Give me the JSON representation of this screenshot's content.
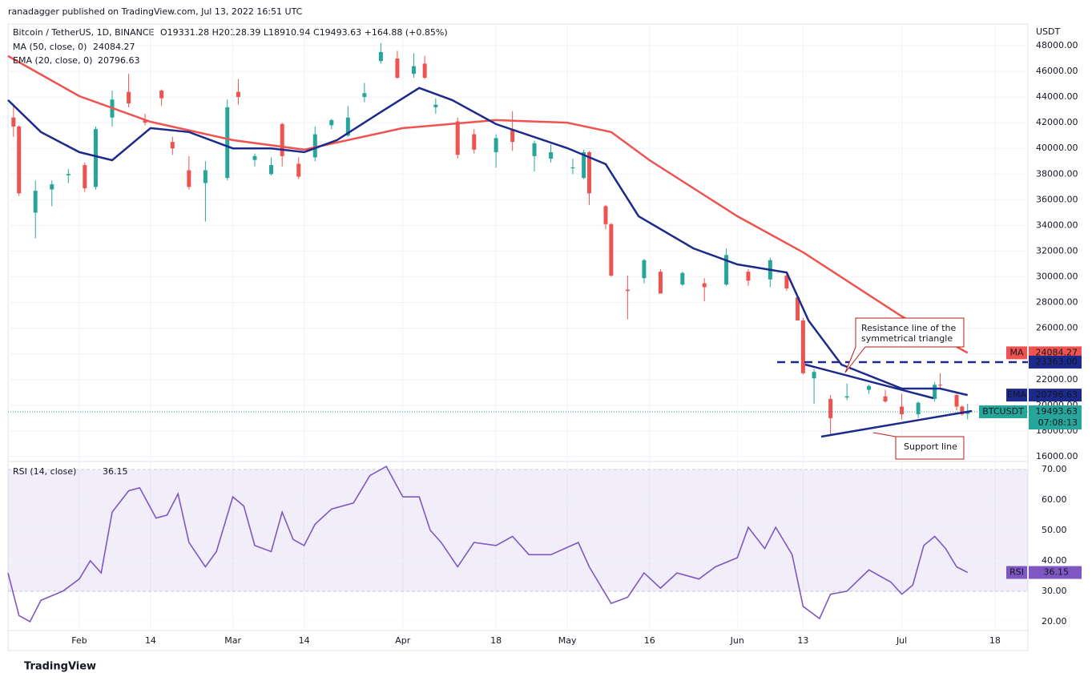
{
  "header": "ranadagger published on TradingView.com, Jul 13, 2022 16:51 UTC",
  "footer": "TradingView",
  "chart_data": [
    {
      "type": "candlestick",
      "legend": [
        "Bitcoin / TetherUS, 1D, BINANCE",
        "O19331.28 H20128.39 L18910.94 C19493.63 +164.88 (+0.85%)"
      ],
      "axis_unit": "USDT",
      "xlim": [
        "Jan 19",
        "Jul 24"
      ],
      "xticks": [
        {
          "value": "Feb 1",
          "label": "Feb"
        },
        {
          "value": "Feb 14",
          "label": "14"
        },
        {
          "value": "Mar 1",
          "label": "Mar"
        },
        {
          "value": "Mar 14",
          "label": "14"
        },
        {
          "value": "Apr 1",
          "label": "Apr"
        },
        {
          "value": "Apr 18",
          "label": "18"
        },
        {
          "value": "May 1",
          "label": "May"
        },
        {
          "value": "May 16",
          "label": "16"
        },
        {
          "value": "Jun 1",
          "label": "Jun"
        },
        {
          "value": "Jun 13",
          "label": "13"
        },
        {
          "value": "Jul 1",
          "label": "Jul"
        },
        {
          "value": "Jul 18",
          "label": "18"
        }
      ],
      "ylim": [
        15690,
        49680
      ],
      "yticks": [
        {
          "value": 16000,
          "label": "16000.00"
        },
        {
          "value": 18000,
          "label": "18000.00"
        },
        {
          "value": 20000,
          "label": "20000.00"
        },
        {
          "value": 22000,
          "label": "22000.00"
        },
        {
          "value": 24000,
          "label": "24000.00"
        },
        {
          "value": 26000,
          "label": "26000.00"
        },
        {
          "value": 28000,
          "label": "28000.00"
        },
        {
          "value": 30000,
          "label": "30000.00"
        },
        {
          "value": 32000,
          "label": "32000.00"
        },
        {
          "value": 34000,
          "label": "34000.00"
        },
        {
          "value": 36000,
          "label": "36000.00"
        },
        {
          "value": 38000,
          "label": "38000.00"
        },
        {
          "value": 40000,
          "label": "40000.00"
        },
        {
          "value": 42000,
          "label": "42000.00"
        },
        {
          "value": 44000,
          "label": "44000.00"
        },
        {
          "value": 46000,
          "label": "46000.00"
        },
        {
          "value": 48000,
          "label": "48000.00"
        }
      ],
      "grid": true,
      "up_color": "#26a69a",
      "down_color": "#ef5350",
      "candles": [
        {
          "x": "Jan 20",
          "open": 42400,
          "high": 43400,
          "low": 40900,
          "close": 41700
        },
        {
          "x": "Jan 21",
          "open": 41700,
          "high": 41800,
          "low": 36300,
          "close": 36500
        },
        {
          "x": "Jan 24",
          "open": 35000,
          "high": 37500,
          "low": 33000,
          "close": 36700
        },
        {
          "x": "Jan 27",
          "open": 36800,
          "high": 37500,
          "low": 35500,
          "close": 37200
        },
        {
          "x": "Jan 30",
          "open": 37900,
          "high": 38400,
          "low": 37300,
          "close": 38000
        },
        {
          "x": "Feb 2",
          "open": 38700,
          "high": 38900,
          "low": 36600,
          "close": 36900
        },
        {
          "x": "Feb 4",
          "open": 37000,
          "high": 41700,
          "low": 36800,
          "close": 41500
        },
        {
          "x": "Feb 7",
          "open": 42400,
          "high": 44500,
          "low": 41700,
          "close": 43800
        },
        {
          "x": "Feb 10",
          "open": 44400,
          "high": 45800,
          "low": 43200,
          "close": 43500
        },
        {
          "x": "Feb 13",
          "open": 42200,
          "high": 42700,
          "low": 41800,
          "close": 42000
        },
        {
          "x": "Feb 16",
          "open": 44500,
          "high": 44600,
          "low": 43300,
          "close": 43900
        },
        {
          "x": "Feb 18",
          "open": 40500,
          "high": 40900,
          "low": 39500,
          "close": 40000
        },
        {
          "x": "Feb 21",
          "open": 38300,
          "high": 39400,
          "low": 36800,
          "close": 37000
        },
        {
          "x": "Feb 24",
          "open": 37300,
          "high": 39000,
          "low": 34300,
          "close": 38300
        },
        {
          "x": "Feb 28",
          "open": 37700,
          "high": 43800,
          "low": 37500,
          "close": 43200
        },
        {
          "x": "Mar 2",
          "open": 44400,
          "high": 45400,
          "low": 43400,
          "close": 44000
        },
        {
          "x": "Mar 5",
          "open": 39100,
          "high": 39600,
          "low": 38600,
          "close": 39400
        },
        {
          "x": "Mar 8",
          "open": 38000,
          "high": 39300,
          "low": 37900,
          "close": 38700
        },
        {
          "x": "Mar 10",
          "open": 41900,
          "high": 42000,
          "low": 38600,
          "close": 39400
        },
        {
          "x": "Mar 13",
          "open": 38800,
          "high": 39300,
          "low": 37600,
          "close": 37800
        },
        {
          "x": "Mar 16",
          "open": 39300,
          "high": 41700,
          "low": 39000,
          "close": 41100
        },
        {
          "x": "Mar 19",
          "open": 41800,
          "high": 42300,
          "low": 41500,
          "close": 42200
        },
        {
          "x": "Mar 22",
          "open": 41000,
          "high": 43300,
          "low": 40900,
          "close": 42400
        },
        {
          "x": "Mar 25",
          "open": 44000,
          "high": 45100,
          "low": 43600,
          "close": 44300
        },
        {
          "x": "Mar 28",
          "open": 46800,
          "high": 48200,
          "low": 46600,
          "close": 47500
        },
        {
          "x": "Mar 31",
          "open": 47000,
          "high": 47600,
          "low": 45400,
          "close": 45500
        },
        {
          "x": "Apr 3",
          "open": 45800,
          "high": 47400,
          "low": 45500,
          "close": 46400
        },
        {
          "x": "Apr 5",
          "open": 46600,
          "high": 47200,
          "low": 45400,
          "close": 45500
        },
        {
          "x": "Apr 7",
          "open": 43200,
          "high": 43900,
          "low": 42700,
          "close": 43400
        },
        {
          "x": "Apr 11",
          "open": 42100,
          "high": 42400,
          "low": 39200,
          "close": 39500
        },
        {
          "x": "Apr 14",
          "open": 41100,
          "high": 41500,
          "low": 39600,
          "close": 39900
        },
        {
          "x": "Apr 18",
          "open": 39700,
          "high": 41100,
          "low": 38500,
          "close": 40800
        },
        {
          "x": "Apr 21",
          "open": 41500,
          "high": 42900,
          "low": 39800,
          "close": 40500
        },
        {
          "x": "Apr 25",
          "open": 39400,
          "high": 40600,
          "low": 38200,
          "close": 40400
        },
        {
          "x": "Apr 28",
          "open": 39200,
          "high": 40300,
          "low": 38900,
          "close": 39700
        },
        {
          "x": "May 2",
          "open": 38450,
          "high": 39200,
          "low": 38000,
          "close": 38520
        },
        {
          "x": "May 4",
          "open": 37700,
          "high": 39900,
          "low": 37600,
          "close": 39700
        },
        {
          "x": "May 5",
          "open": 39700,
          "high": 39800,
          "low": 35600,
          "close": 36500
        },
        {
          "x": "May 8",
          "open": 35500,
          "high": 35600,
          "low": 33700,
          "close": 34100
        },
        {
          "x": "May 9",
          "open": 34100,
          "high": 34200,
          "low": 30000,
          "close": 30100
        },
        {
          "x": "May 12",
          "open": 29000,
          "high": 30100,
          "low": 26700,
          "close": 28900
        },
        {
          "x": "May 15",
          "open": 29900,
          "high": 31400,
          "low": 29500,
          "close": 31300
        },
        {
          "x": "May 18",
          "open": 30400,
          "high": 30600,
          "low": 28700,
          "close": 28700
        },
        {
          "x": "May 22",
          "open": 29400,
          "high": 30400,
          "low": 29300,
          "close": 30300
        },
        {
          "x": "May 26",
          "open": 29500,
          "high": 29900,
          "low": 28100,
          "close": 29200
        },
        {
          "x": "May 30",
          "open": 29400,
          "high": 32200,
          "low": 29300,
          "close": 31700
        },
        {
          "x": "Jun 3",
          "open": 30400,
          "high": 30600,
          "low": 29300,
          "close": 29700
        },
        {
          "x": "Jun 7",
          "open": 29800,
          "high": 31500,
          "low": 29200,
          "close": 31300
        },
        {
          "x": "Jun 10",
          "open": 30100,
          "high": 30300,
          "low": 28900,
          "close": 29100
        },
        {
          "x": "Jun 12",
          "open": 28400,
          "high": 28500,
          "low": 26600,
          "close": 26600
        },
        {
          "x": "Jun 13",
          "open": 26600,
          "high": 26800,
          "low": 22400,
          "close": 22500
        },
        {
          "x": "Jun 15",
          "open": 22100,
          "high": 22800,
          "low": 20100,
          "close": 22600
        },
        {
          "x": "Jun 18",
          "open": 20500,
          "high": 20800,
          "low": 17600,
          "close": 19000
        },
        {
          "x": "Jun 21",
          "open": 20600,
          "high": 21700,
          "low": 20400,
          "close": 20700
        },
        {
          "x": "Jun 25",
          "open": 21200,
          "high": 21600,
          "low": 20900,
          "close": 21500
        },
        {
          "x": "Jun 28",
          "open": 20700,
          "high": 21200,
          "low": 20200,
          "close": 20300
        },
        {
          "x": "Jul 1",
          "open": 19900,
          "high": 20900,
          "low": 18900,
          "close": 19300
        },
        {
          "x": "Jul 4",
          "open": 19300,
          "high": 20300,
          "low": 19000,
          "close": 20200
        },
        {
          "x": "Jul 7",
          "open": 20500,
          "high": 21800,
          "low": 20300,
          "close": 21600
        },
        {
          "x": "Jul 8",
          "open": 21600,
          "high": 22500,
          "low": 21300,
          "close": 21590
        },
        {
          "x": "Jul 11",
          "open": 20800,
          "high": 20900,
          "low": 19600,
          "close": 19900
        },
        {
          "x": "Jul 12",
          "open": 19900,
          "high": 20000,
          "low": 19200,
          "close": 19300
        },
        {
          "x": "Jul 13",
          "open": 19331.28,
          "high": 20128.39,
          "low": 18910.94,
          "close": 19493.63
        }
      ],
      "series": [
        {
          "name": "MA (50, close, 0)",
          "value_label": "24084.27",
          "tag": "MA",
          "tag_value": 24084.27,
          "color": "#ef5350",
          "x": [
            "Jan 19",
            "Feb 1",
            "Feb 14",
            "Mar 1",
            "Mar 14",
            "Apr 1",
            "Apr 18",
            "May 1",
            "May 9",
            "May 16",
            "Jun 1",
            "Jun 13",
            "Jul 1",
            "Jul 13"
          ],
          "values": [
            47190,
            44070,
            42070,
            40640,
            39900,
            41580,
            42200,
            42000,
            41270,
            39080,
            34720,
            31910,
            26920,
            24084.27
          ]
        },
        {
          "name": "EMA (20, close, 0)",
          "value_label": "20796.63",
          "tag": "EMA",
          "tag_value": 20796.63,
          "color": "#1c2a8c",
          "x": [
            "Jan 19",
            "Jan 25",
            "Feb 1",
            "Feb 7",
            "Feb 14",
            "Feb 21",
            "Mar 1",
            "Mar 8",
            "Mar 14",
            "Mar 20",
            "Mar 28",
            "Apr 4",
            "Apr 10",
            "Apr 18",
            "May 1",
            "May 8",
            "May 14",
            "May 24",
            "Jun 1",
            "Jun 10",
            "Jun 14",
            "Jun 20",
            "Jul 1",
            "Jul 8",
            "Jul 13"
          ],
          "values": [
            43760,
            41270,
            39710,
            39080,
            41580,
            41270,
            40000,
            40000,
            39710,
            40640,
            42830,
            44700,
            43760,
            41890,
            40020,
            38770,
            34720,
            32220,
            30970,
            30340,
            26600,
            23170,
            21300,
            21300,
            20796.63
          ]
        }
      ],
      "levels": [
        {
          "value": 23363,
          "label": "23363.00",
          "color": "#1c2a8c"
        }
      ],
      "last_price": {
        "tag": "BTCUSDT",
        "label": "19493.63",
        "countdown": "07:08:13",
        "color": "#26a69a"
      },
      "annotations": [
        "Resistance line of the symmetrical triangle",
        "Support line"
      ]
    },
    {
      "type": "line",
      "name": "RSI (14, close)",
      "value_label": "36.15",
      "tag": "RSI",
      "color": "#7e57c2",
      "ylim": [
        17.6,
        72.1
      ],
      "yticks": [
        {
          "value": 20,
          "label": "20.00"
        },
        {
          "value": 30,
          "label": "30.00"
        },
        {
          "value": 40,
          "label": "40.00"
        },
        {
          "value": 50,
          "label": "50.00"
        },
        {
          "value": 60,
          "label": "60.00"
        },
        {
          "value": 70,
          "label": "70.00"
        }
      ],
      "band": [
        30,
        70
      ],
      "x": [
        "Jan 19",
        "Jan 21",
        "Jan 23",
        "Jan 25",
        "Jan 29",
        "Feb 1",
        "Feb 3",
        "Feb 5",
        "Feb 7",
        "Feb 10",
        "Feb 12",
        "Feb 15",
        "Feb 17",
        "Feb 19",
        "Feb 21",
        "Feb 24",
        "Feb 26",
        "Mar 1",
        "Mar 3",
        "Mar 5",
        "Mar 8",
        "Mar 10",
        "Mar 12",
        "Mar 14",
        "Mar 16",
        "Mar 19",
        "Mar 23",
        "Mar 26",
        "Mar 29",
        "Apr 1",
        "Apr 4",
        "Apr 6",
        "Apr 8",
        "Apr 11",
        "Apr 14",
        "Apr 18",
        "Apr 21",
        "Apr 24",
        "Apr 28",
        "May 3",
        "May 5",
        "May 9",
        "May 12",
        "May 15",
        "May 18",
        "May 21",
        "May 25",
        "May 28",
        "Jun 1",
        "Jun 3",
        "Jun 6",
        "Jun 8",
        "Jun 11",
        "Jun 13",
        "Jun 16",
        "Jun 18",
        "Jun 21",
        "Jun 25",
        "Jun 29",
        "Jul 1",
        "Jul 3",
        "Jul 5",
        "Jul 7",
        "Jul 9",
        "Jul 11",
        "Jul 13"
      ],
      "values": [
        36,
        22,
        20,
        27,
        30,
        34,
        40,
        36,
        56,
        63,
        64,
        54,
        55,
        62,
        46,
        38,
        43,
        61,
        58,
        45,
        43,
        56,
        47,
        45,
        52,
        57,
        59,
        68,
        71,
        61,
        61,
        50,
        46,
        38,
        46,
        45,
        48,
        42,
        42,
        46,
        38,
        26,
        28,
        36,
        31,
        36,
        34,
        38,
        41,
        51,
        44,
        51,
        42,
        25,
        21,
        29,
        30,
        37,
        33,
        29,
        32,
        45,
        48,
        44,
        38,
        36.15
      ]
    }
  ]
}
